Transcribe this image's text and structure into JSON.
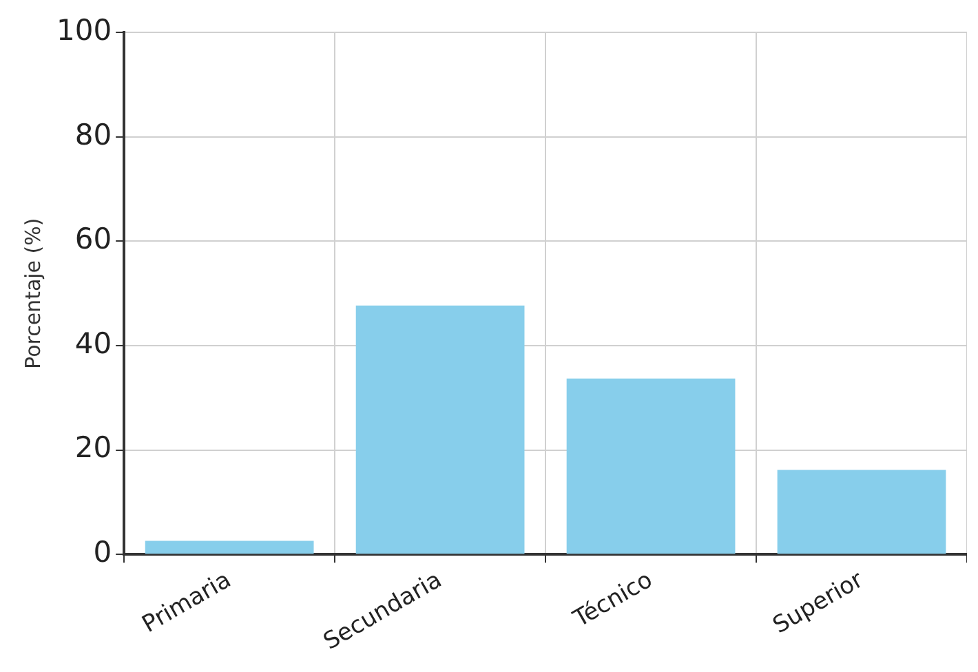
{
  "chart_data": {
    "type": "bar",
    "ylabel": "Porcentaje (%)",
    "categories": [
      "Primaria",
      "Secundaria",
      "Técnico",
      "Superior"
    ],
    "values": [
      2.6,
      47.7,
      33.7,
      16.2
    ],
    "color": "#87ceeb",
    "ylim": [
      0,
      100
    ],
    "yticks": [
      0,
      20,
      40,
      60,
      80,
      100
    ],
    "grid": true
  }
}
